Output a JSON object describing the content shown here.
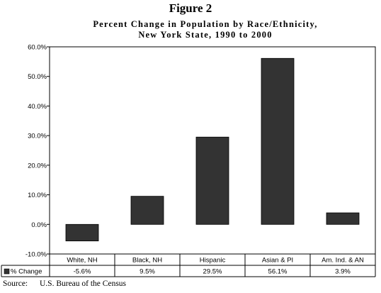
{
  "figure_label": "Figure 2",
  "chart_data": {
    "type": "bar",
    "title": "Percent Change in Population by Race/Ethnicity,",
    "subtitle": "New York State, 1990 to 2000",
    "categories": [
      "White, NH",
      "Black, NH",
      "Hispanic",
      "Asian & PI",
      "Am. Ind. & AN"
    ],
    "series": [
      {
        "name": "% Change",
        "values": [
          -5.6,
          9.5,
          29.5,
          56.1,
          3.9
        ],
        "labels": [
          "-5.6%",
          "9.5%",
          "29.5%",
          "56.1%",
          "3.9%"
        ],
        "color": "#333333"
      }
    ],
    "yticks": [
      -10,
      0,
      10,
      20,
      30,
      40,
      50,
      60
    ],
    "ytick_labels": [
      "-10.0%",
      "0.0%",
      "10.0%",
      "20.0%",
      "30.0%",
      "40.0%",
      "50.0%",
      "60.0%"
    ],
    "ylim": [
      -10,
      60
    ],
    "grid": false,
    "legend": "data-table-below"
  },
  "source": {
    "label": "Source:",
    "text": "U.S. Bureau of the Census"
  }
}
